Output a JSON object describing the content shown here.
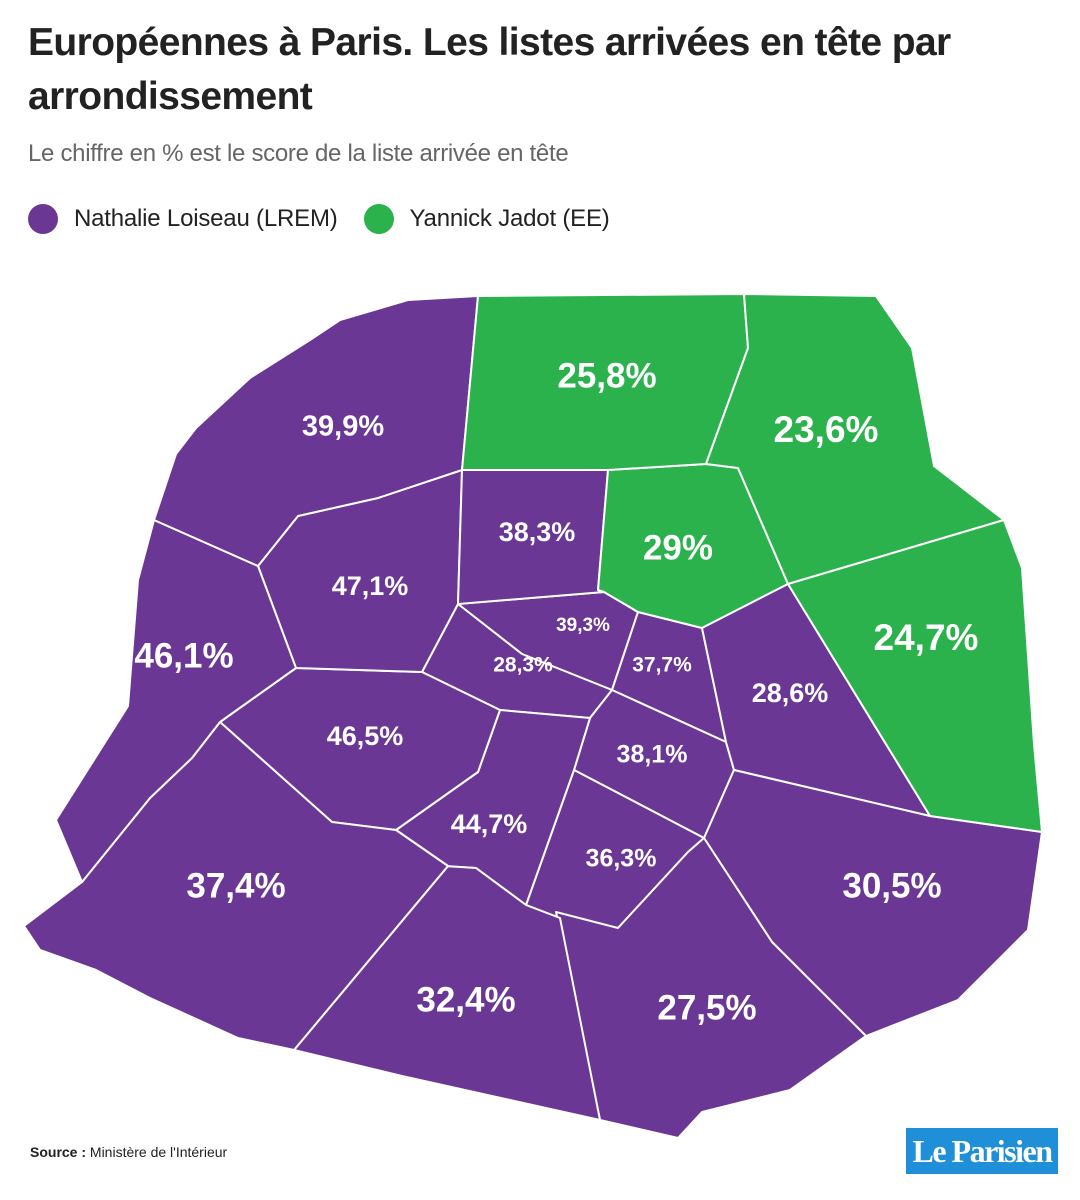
{
  "title": "Européennes à Paris. Les listes arrivées en tête par arrondissement",
  "subtitle": "Le chiffre en % est le score de la liste arrivée en tête",
  "legend": [
    {
      "name": "Nathalie Loiseau (LREM)",
      "color": "#6a3794"
    },
    {
      "name": "Yannick Jadot (EE)",
      "color": "#2bb24c"
    }
  ],
  "colors": {
    "loiseau": "#6a3794",
    "jadot": "#2bb24c",
    "border": "#ffffff"
  },
  "regions": [
    {
      "id": "r1",
      "label": "39,3%",
      "winner": "loiseau",
      "score": 39.3
    },
    {
      "id": "r2",
      "label": "28,3%",
      "winner": "loiseau",
      "score": 28.3
    },
    {
      "id": "r3",
      "label": "37,7%",
      "winner": "loiseau",
      "score": 37.7
    },
    {
      "id": "r4",
      "label": "38,1%",
      "winner": "loiseau",
      "score": 38.1
    },
    {
      "id": "r5",
      "label": "36,3%",
      "winner": "loiseau",
      "score": 36.3
    },
    {
      "id": "r6",
      "label": "44,7%",
      "winner": "loiseau",
      "score": 44.7
    },
    {
      "id": "r7",
      "label": "46,5%",
      "winner": "loiseau",
      "score": 46.5
    },
    {
      "id": "r8",
      "label": "47,1%",
      "winner": "loiseau",
      "score": 47.1
    },
    {
      "id": "r9",
      "label": "38,3%",
      "winner": "loiseau",
      "score": 38.3
    },
    {
      "id": "r10",
      "label": "29%",
      "winner": "jadot",
      "score": 29
    },
    {
      "id": "r11",
      "label": "28,6%",
      "winner": "loiseau",
      "score": 28.6
    },
    {
      "id": "r12",
      "label": "30,5%",
      "winner": "loiseau",
      "score": 30.5
    },
    {
      "id": "r13",
      "label": "27,5%",
      "winner": "loiseau",
      "score": 27.5
    },
    {
      "id": "r14",
      "label": "32,4%",
      "winner": "loiseau",
      "score": 32.4
    },
    {
      "id": "r15",
      "label": "37,4%",
      "winner": "loiseau",
      "score": 37.4
    },
    {
      "id": "r16",
      "label": "46,1%",
      "winner": "loiseau",
      "score": 46.1
    },
    {
      "id": "r17",
      "label": "39,9%",
      "winner": "loiseau",
      "score": 39.9
    },
    {
      "id": "r18",
      "label": "25,8%",
      "winner": "jadot",
      "score": 25.8
    },
    {
      "id": "r19",
      "label": "23,6%",
      "winner": "jadot",
      "score": 23.6
    },
    {
      "id": "r20",
      "label": "24,7%",
      "winner": "jadot",
      "score": 24.7
    }
  ],
  "source": {
    "prefix": "Source :",
    "text": "Ministère de l'Intérieur"
  },
  "logo": "Le Parisien"
}
